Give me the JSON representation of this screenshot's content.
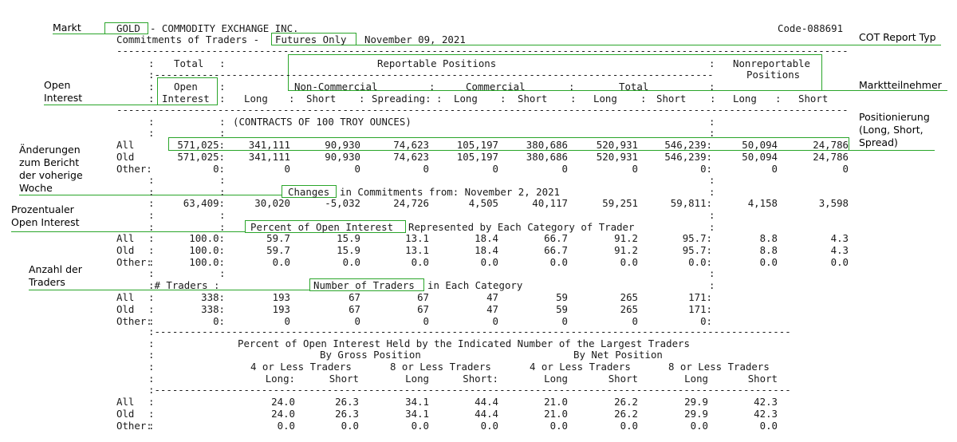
{
  "annotations": {
    "markt": "Markt",
    "cot_report_typ": "COT Report Typ",
    "open_interest_l1": "Open",
    "open_interest_l2": "Interest",
    "marktteilnehmer": "Marktteilnehmer",
    "positionierung_l1": "Positionierung",
    "positionierung_l2": "(Long, Short,",
    "positionierung_l3": "Spread)",
    "aenderungen_l1": "Änderungen",
    "aenderungen_l2": "zum Bericht",
    "aenderungen_l3": "der voherige",
    "aenderungen_l4": "Woche",
    "prozentualer_l1": "Prozentualer",
    "prozentualer_l2": "Open Interest",
    "anzahl_l1": "Anzahl der",
    "anzahl_l2": "Traders"
  },
  "report": {
    "commodity_box": "GOLD",
    "exchange": "- COMMODITY EXCHANGE INC.",
    "code": "Code-088691",
    "subtitle_pre": "Commitments of Traders -",
    "futures_only": "Futures Only",
    "date": "November 09, 2021",
    "dash_long": "------------------------------------------------------------------------------------------------------------------------------",
    "dash_mid": "--------------------------------------------------------------------------------------------",
    "dash_short": "----------------------------------------------------------------------------------------------------",
    "dash_sub": "-------------------------------------------------------------------------------------------------",
    "hdr_total": "Total",
    "hdr_reportable": "Reportable Positions",
    "hdr_nonrep_1": "Nonreportable",
    "hdr_nonrep_2": "Positions",
    "hdr_noncommercial": "Non-Commercial",
    "hdr_commercial": "Commercial",
    "hdr_total2": "Total",
    "hdr_open": "Open",
    "hdr_interest": "Interest",
    "col_headers": [
      "Long",
      "Short",
      "Spreading:",
      "Long",
      "Short",
      "Long",
      "Short",
      "Long",
      "Short"
    ],
    "contracts_note": "(CONTRACTS OF 100 TROY OUNCES)",
    "rows_main": [
      {
        "label": "All",
        "oi": "571,025:",
        "v": [
          "341,111",
          "90,930",
          "74,623",
          "105,197",
          "380,686",
          "520,931",
          "546,239:",
          "50,094",
          "24,786"
        ]
      },
      {
        "label": "Old",
        "oi": "571,025:",
        "v": [
          "341,111",
          "90,930",
          "74,623",
          "105,197",
          "380,686",
          "520,931",
          "546,239:",
          "50,094",
          "24,786"
        ]
      },
      {
        "label": "Other:",
        "oi": "0:",
        "v": [
          "0",
          "0",
          "0",
          "0",
          "0",
          "0",
          "0:",
          "0",
          "0"
        ]
      }
    ],
    "changes_box": "Changes",
    "changes_rest": "in Commitments from: November 2, 2021",
    "changes_row": {
      "oi": "63,409:",
      "v": [
        "30,020",
        "-5,032",
        "24,726",
        "4,505",
        "40,117",
        "59,251",
        "59,811:",
        "4,158",
        "3,598"
      ]
    },
    "percent_box": "Percent of Open Interest",
    "percent_rest": "Represented by Each Category of Trader",
    "rows_pct": [
      {
        "label": "All",
        "oi": "100.0:",
        "v": [
          "59.7",
          "15.9",
          "13.1",
          "18.4",
          "66.7",
          "91.2",
          "95.7:",
          "8.8",
          "4.3"
        ]
      },
      {
        "label": "Old",
        "oi": "100.0:",
        "v": [
          "59.7",
          "15.9",
          "13.1",
          "18.4",
          "66.7",
          "91.2",
          "95.7:",
          "8.8",
          "4.3"
        ]
      },
      {
        "label": "Other:",
        "oi": "100.0:",
        "v": [
          "0.0",
          "0.0",
          "0.0",
          "0.0",
          "0.0",
          "0.0",
          "0.0:",
          "0.0",
          "0.0"
        ]
      }
    ],
    "traders_label": ":# Traders :",
    "traders_box": "Number of Traders",
    "traders_rest": "in Each Category",
    "rows_traders": [
      {
        "label": "All",
        "oi": "338:",
        "v": [
          "193",
          "67",
          "67",
          "47",
          "59",
          "265",
          "171:"
        ]
      },
      {
        "label": "Old",
        "oi": "338:",
        "v": [
          "193",
          "67",
          "67",
          "47",
          "59",
          "265",
          "171:"
        ]
      },
      {
        "label": "Other:",
        "oi": "0:",
        "v": [
          "0",
          "0",
          "0",
          "0",
          "0",
          "0",
          "0:"
        ]
      }
    ],
    "largest_title": "Percent of Open Interest Held by the Indicated Number of the Largest Traders",
    "by_gross": "By Gross Position",
    "by_net": "By Net Position",
    "four_or_less_1": "4 or Less Traders",
    "eight_or_less_1": "8 or Less Traders",
    "four_or_less_2": "4 or Less Traders",
    "eight_or_less_2": "8 or Less Traders",
    "largest_cols": [
      "Long:",
      "Short",
      "Long",
      "Short:",
      "Long",
      "Short",
      "Long",
      "Short"
    ],
    "rows_largest": [
      {
        "label": "All",
        "v": [
          "24.0",
          "26.3",
          "34.1",
          "44.4",
          "21.0",
          "26.2",
          "29.9",
          "42.3"
        ]
      },
      {
        "label": "Old",
        "v": [
          "24.0",
          "26.3",
          "34.1",
          "44.4",
          "21.0",
          "26.2",
          "29.9",
          "42.3"
        ]
      },
      {
        "label": "Other:",
        "v": [
          "0.0",
          "0.0",
          "0.0",
          "0.0",
          "0.0",
          "0.0",
          "0.0",
          "0.0"
        ]
      }
    ]
  },
  "colors": {
    "annotation_green": "#2aa52a"
  }
}
